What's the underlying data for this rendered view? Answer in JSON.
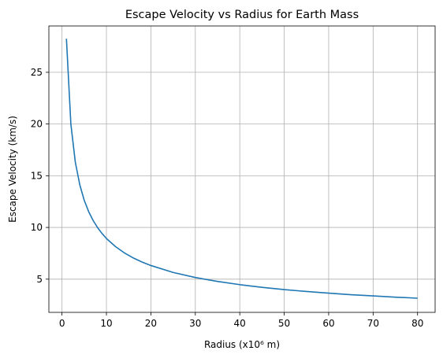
{
  "chart_data": {
    "type": "line",
    "title": "Escape Velocity vs Radius for Earth Mass",
    "xlabel": "Radius (x10⁶ m)",
    "ylabel": "Escape Velocity (km/s)",
    "xlim": [
      -2.95,
      83.95
    ],
    "ylim": [
      1.79,
      29.48
    ],
    "xticks": [
      0,
      10,
      20,
      30,
      40,
      50,
      60,
      70,
      80
    ],
    "xtick_labels": [
      "0",
      "10",
      "20",
      "30",
      "40",
      "50",
      "60",
      "70",
      "80"
    ],
    "yticks": [
      5,
      10,
      15,
      20,
      25
    ],
    "ytick_labels": [
      "5",
      "10",
      "15",
      "20",
      "25"
    ],
    "grid": true,
    "series": [
      {
        "color": "#1f77b4",
        "x": [
          1,
          2,
          3,
          4,
          5,
          6,
          7,
          8,
          9,
          10,
          12,
          14,
          16,
          18,
          20,
          25,
          30,
          35,
          40,
          45,
          50,
          55,
          60,
          65,
          70,
          75,
          80
        ],
        "y": [
          28.25,
          19.98,
          16.31,
          14.13,
          12.63,
          11.53,
          10.68,
          9.99,
          9.42,
          8.93,
          8.16,
          7.55,
          7.06,
          6.66,
          6.32,
          5.65,
          5.16,
          4.78,
          4.47,
          4.21,
          3.99,
          3.81,
          3.65,
          3.5,
          3.38,
          3.26,
          3.16
        ]
      }
    ]
  }
}
